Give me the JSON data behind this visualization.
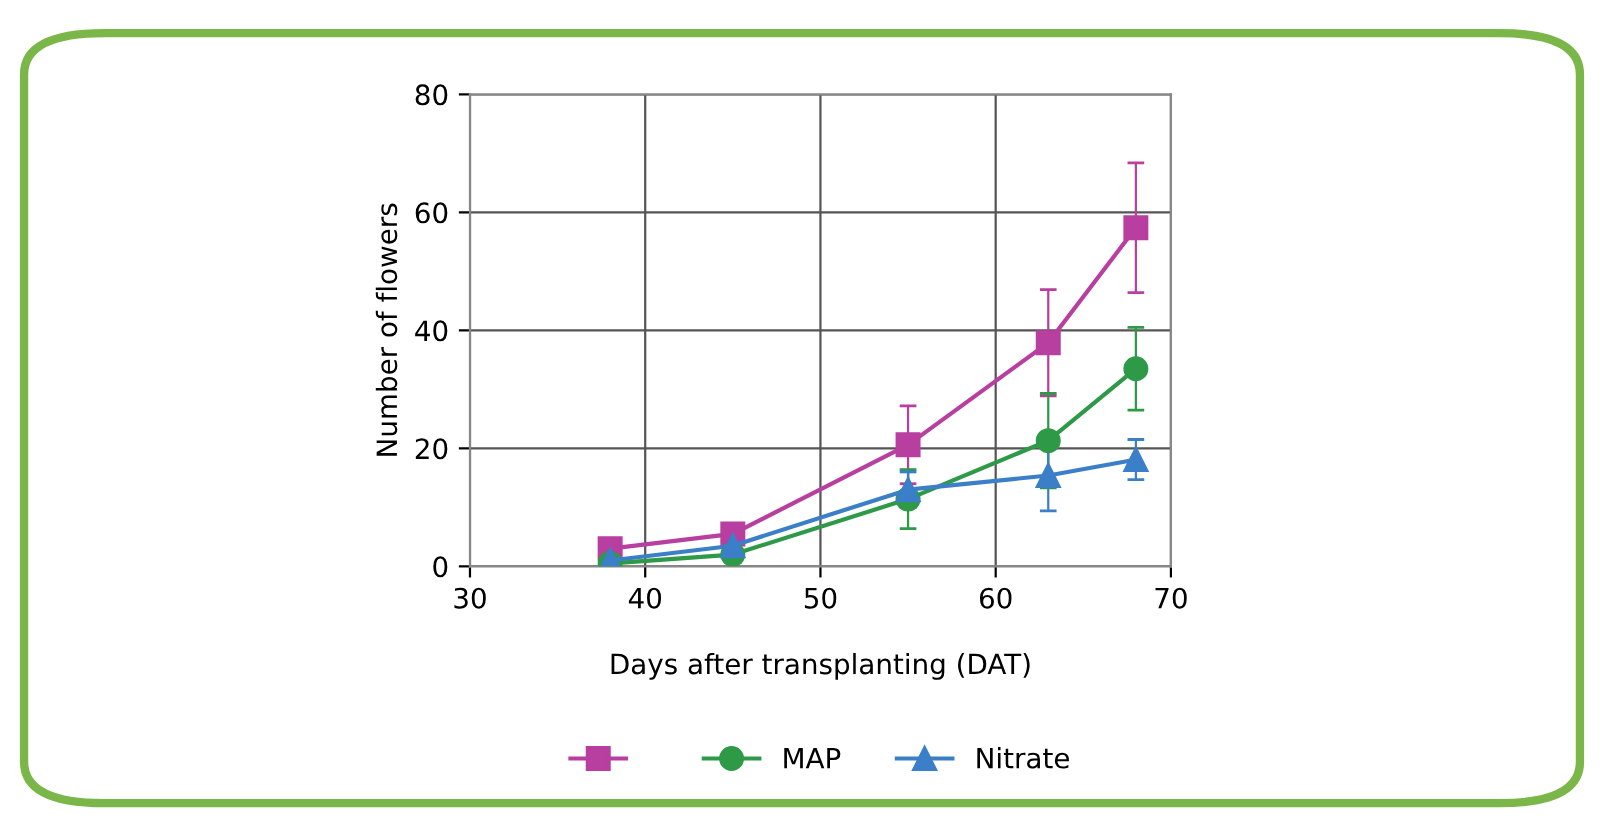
{
  "chart_data": {
    "type": "line",
    "xlabel": "Days after transplanting (DAT)",
    "ylabel": "Number of flowers",
    "xlim": [
      30,
      70
    ],
    "xticks": [
      30,
      40,
      50,
      60,
      70
    ],
    "ylim": [
      0,
      80
    ],
    "yticks": [
      0,
      20,
      40,
      60,
      80
    ],
    "grid": true,
    "legend": "bottom",
    "series": [
      {
        "color": "#b83ea0",
        "marker": "square",
        "x": [
          38,
          45,
          55,
          63,
          68
        ],
        "values": [
          3,
          5.5,
          20.6,
          37.9,
          57.4
        ],
        "errors": [
          null,
          null,
          6.6,
          9,
          11
        ]
      },
      {
        "name": "MAP",
        "color": "#2e9a48",
        "marker": "circle",
        "x": [
          38,
          45,
          55,
          63,
          68
        ],
        "values": [
          0.5,
          2,
          11.4,
          21.3,
          33.5
        ],
        "errors": [
          null,
          null,
          5,
          8,
          7
        ]
      },
      {
        "name": "Nitrate",
        "color": "#3a7fc8",
        "marker": "triangle",
        "x": [
          38,
          45,
          55,
          63,
          68
        ],
        "values": [
          1,
          3.5,
          13,
          15.4,
          18.1
        ],
        "errors": [
          null,
          null,
          3,
          6,
          3.4
        ]
      }
    ]
  }
}
